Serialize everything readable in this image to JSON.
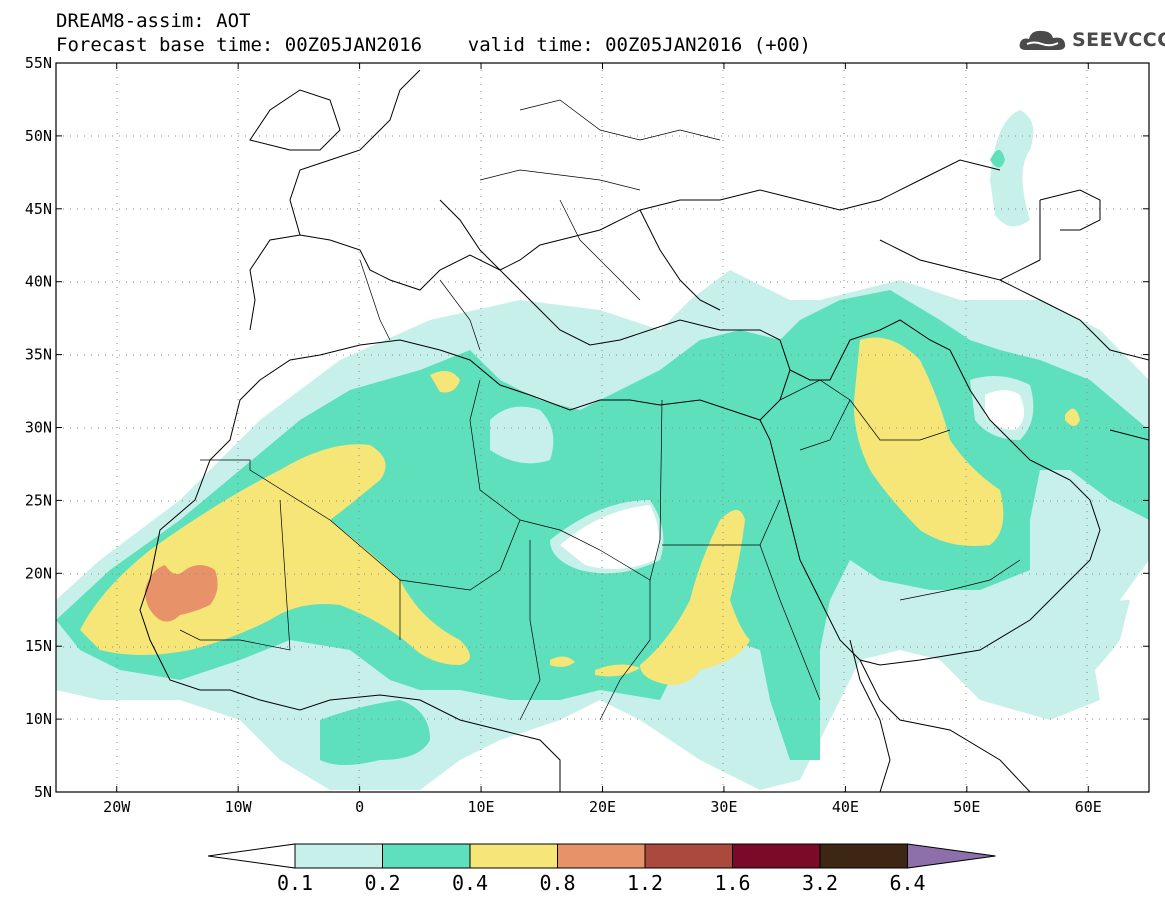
{
  "header": {
    "title_line_1": "DREAM8-assim: AOT",
    "title_line_2": "Forecast base time: 00Z05JAN2016    valid time: 00Z05JAN2016 (+00)"
  },
  "logo": {
    "text": "SEEVCCC",
    "icon": "cloud-icon"
  },
  "map": {
    "variable": "Aerosol optical thickness (AOT)",
    "lon_range": [
      -25,
      65
    ],
    "lat_range": [
      5,
      55
    ],
    "lon_ticks": [
      {
        "value": -20,
        "label": "20W"
      },
      {
        "value": -10,
        "label": "10W"
      },
      {
        "value": 0,
        "label": "0"
      },
      {
        "value": 10,
        "label": "10E"
      },
      {
        "value": 20,
        "label": "20E"
      },
      {
        "value": 30,
        "label": "30E"
      },
      {
        "value": 40,
        "label": "40E"
      },
      {
        "value": 50,
        "label": "50E"
      },
      {
        "value": 60,
        "label": "60E"
      }
    ],
    "lat_ticks": [
      {
        "value": 55,
        "label": "55N"
      },
      {
        "value": 50,
        "label": "50N"
      },
      {
        "value": 45,
        "label": "45N"
      },
      {
        "value": 40,
        "label": "40N"
      },
      {
        "value": 35,
        "label": "35N"
      },
      {
        "value": 30,
        "label": "30N"
      },
      {
        "value": 25,
        "label": "25N"
      },
      {
        "value": 20,
        "label": "20N"
      },
      {
        "value": 15,
        "label": "15N"
      },
      {
        "value": 10,
        "label": "10N"
      },
      {
        "value": 5,
        "label": "5N"
      }
    ],
    "grid": "dotted"
  },
  "colorbar": {
    "colors": [
      "#ffffff",
      "#c7f0ea",
      "#5ee0bd",
      "#f5e677",
      "#e8926a",
      "#aa4a3c",
      "#7a0a28",
      "#3d2614",
      "#8d6fa9"
    ],
    "labels": [
      "0.1",
      "0.2",
      "0.4",
      "0.8",
      "1.2",
      "1.6",
      "3.2",
      "6.4"
    ]
  }
}
